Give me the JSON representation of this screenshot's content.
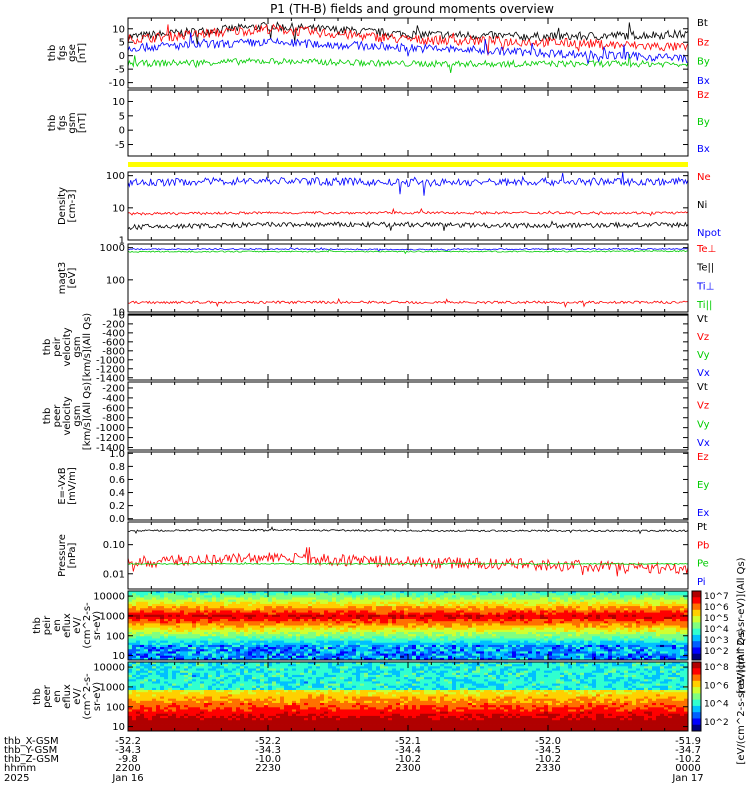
{
  "title": "P1 (TH-B) fields and ground moments overview",
  "panels": [
    {
      "id": "fgs",
      "ylabel": [
        "thb",
        "fgs",
        "gse",
        "[nT]"
      ],
      "ticks": [
        {
          "v": 10,
          "l": "10"
        },
        {
          "v": 5,
          "l": "5"
        },
        {
          "v": 0,
          "l": "0"
        },
        {
          "v": -5,
          "l": "-5"
        },
        {
          "v": -10,
          "l": "-10"
        }
      ],
      "ylim": [
        -12,
        14
      ],
      "scale": "linear",
      "legend": [
        {
          "label": "Bt",
          "color": "#000000"
        },
        {
          "label": "Bz",
          "color": "#ff0000"
        },
        {
          "label": "By",
          "color": "#00cc00"
        },
        {
          "label": "Bx",
          "color": "#0000ff"
        }
      ]
    },
    {
      "id": "fgs_gsm",
      "ylabel": [
        "thb",
        "fgs",
        "gsm",
        "[nT]"
      ],
      "ticks": [
        {
          "v": 10,
          "l": "10"
        },
        {
          "v": 5,
          "l": "5"
        },
        {
          "v": 0,
          "l": "0"
        },
        {
          "v": -5,
          "l": "-5"
        }
      ],
      "ylim": [
        -9,
        14
      ],
      "scale": "linear",
      "legend": [
        {
          "label": "Bz",
          "color": "#ff0000"
        },
        {
          "label": "By",
          "color": "#00cc00"
        },
        {
          "label": "Bx",
          "color": "#0000ff"
        }
      ]
    },
    {
      "id": "density",
      "ylabel": [
        "Density",
        "[cm-3]"
      ],
      "ticks": [
        {
          "v": 100,
          "l": "100"
        },
        {
          "v": 10,
          "l": "10"
        },
        {
          "v": 1,
          "l": "1"
        }
      ],
      "ylim": [
        1,
        130
      ],
      "scale": "log",
      "legend": [
        {
          "label": "Ne",
          "color": "#ff0000"
        },
        {
          "label": "Ni",
          "color": "#000000"
        },
        {
          "label": "Npot",
          "color": "#0000ff"
        }
      ]
    },
    {
      "id": "temp",
      "ylabel": [
        "magt3",
        "[eV]"
      ],
      "ticks": [
        {
          "v": 1000,
          "l": "1000"
        },
        {
          "v": 100,
          "l": "100"
        },
        {
          "v": 10,
          "l": "10"
        }
      ],
      "ylim": [
        10,
        1300
      ],
      "scale": "log",
      "legend": [
        {
          "label": "Te⊥",
          "color": "#ff0000"
        },
        {
          "label": "Te||",
          "color": "#000000"
        },
        {
          "label": "Ti⊥",
          "color": "#0000ff"
        },
        {
          "label": "Ti||",
          "color": "#00cc00"
        }
      ]
    },
    {
      "id": "peir_vel",
      "ylabel": [
        "thb",
        "peir",
        "velocity",
        "gsm",
        "[km/s](All Qs)"
      ],
      "ticks": [
        {
          "v": 0,
          "l": "0"
        },
        {
          "v": -200,
          "l": "-200"
        },
        {
          "v": -400,
          "l": "-400"
        },
        {
          "v": -600,
          "l": "-600"
        },
        {
          "v": -800,
          "l": "-800"
        },
        {
          "v": -1000,
          "l": "-1000"
        },
        {
          "v": -1200,
          "l": "-1200"
        },
        {
          "v": -1400,
          "l": "-1400"
        }
      ],
      "ylim": [
        -1450,
        20
      ],
      "scale": "linear",
      "legend": [
        {
          "label": "Vt",
          "color": "#000000"
        },
        {
          "label": "Vz",
          "color": "#ff0000"
        },
        {
          "label": "Vy",
          "color": "#00cc00"
        },
        {
          "label": "Vx",
          "color": "#0000ff"
        }
      ]
    },
    {
      "id": "peer_vel",
      "ylabel": [
        "thb",
        "peer",
        "velocity",
        "gsm",
        "[km/s](All Qs)"
      ],
      "ticks": [
        {
          "v": -200,
          "l": "-200"
        },
        {
          "v": -400,
          "l": "-400"
        },
        {
          "v": -600,
          "l": "-600"
        },
        {
          "v": -800,
          "l": "-800"
        },
        {
          "v": -1000,
          "l": "-1000"
        },
        {
          "v": -1200,
          "l": "-1200"
        },
        {
          "v": -1400,
          "l": "-1400"
        }
      ],
      "ylim": [
        -1450,
        -80
      ],
      "scale": "linear",
      "legend": [
        {
          "label": "Vt",
          "color": "#000000"
        },
        {
          "label": "Vz",
          "color": "#ff0000"
        },
        {
          "label": "Vy",
          "color": "#00cc00"
        },
        {
          "label": "Vx",
          "color": "#0000ff"
        }
      ]
    },
    {
      "id": "efield",
      "ylabel": [
        "E=-VxB",
        "[mV/m]"
      ],
      "ticks": [
        {
          "v": 1.0,
          "l": "1.0"
        },
        {
          "v": 0.8,
          "l": "0.8"
        },
        {
          "v": 0.6,
          "l": "0.6"
        },
        {
          "v": 0.4,
          "l": "0.4"
        },
        {
          "v": 0.2,
          "l": "0.2"
        },
        {
          "v": 0.0,
          "l": "0.0"
        }
      ],
      "ylim": [
        -0.02,
        1.02
      ],
      "scale": "linear",
      "legend": [
        {
          "label": "Ez",
          "color": "#ff0000"
        },
        {
          "label": "Ey",
          "color": "#00cc00"
        },
        {
          "label": "Ex",
          "color": "#0000ff"
        }
      ]
    },
    {
      "id": "pressure",
      "ylabel": [
        "Pressure",
        "[nPa]"
      ],
      "ticks": [
        {
          "v": 0.1,
          "l": "0.10"
        },
        {
          "v": 0.01,
          "l": "0.01"
        }
      ],
      "ylim": [
        0.003,
        0.6
      ],
      "scale": "log",
      "legend": [
        {
          "label": "Pt",
          "color": "#000000"
        },
        {
          "label": "Pb",
          "color": "#ff0000"
        },
        {
          "label": "Pe",
          "color": "#00cc00"
        },
        {
          "label": "Pi",
          "color": "#0000ff"
        }
      ]
    },
    {
      "id": "peir_en",
      "ylabel": [
        "thb",
        "peir",
        "en",
        "eflux",
        "eV/",
        "(cm^2-s-",
        "sr-eV)"
      ],
      "ticks": [
        {
          "v": 10000,
          "l": "10000"
        },
        {
          "v": 1000,
          "l": "1000"
        },
        {
          "v": 100,
          "l": "100"
        },
        {
          "v": 10,
          "l": "10"
        }
      ],
      "ylim": [
        6,
        18000
      ],
      "scale": "log",
      "spectrogram": true,
      "colorbar": {
        "label": "[eV/(cm^2-s-sr-eV)](All Qs)",
        "labels": [
          "10^7",
          "10^6",
          "10^5",
          "10^4",
          "10^3",
          "10^2"
        ]
      }
    },
    {
      "id": "peer_en",
      "ylabel": [
        "thb",
        "peer",
        "en",
        "eflux",
        "eV/",
        "(cm^2-s-",
        "sr-eV)"
      ],
      "ticks": [
        {
          "v": 10000,
          "l": "10000"
        },
        {
          "v": 1000,
          "l": "1000"
        },
        {
          "v": 100,
          "l": "100"
        },
        {
          "v": 10,
          "l": "10"
        }
      ],
      "ylim": [
        6,
        18000
      ],
      "scale": "log",
      "spectrogram": true,
      "colorbar": {
        "label": "[eV/(cm^2-s-sr-eV)](All Qs)",
        "labels": [
          "10^8",
          "10^6",
          "10^4",
          "10^2"
        ]
      }
    }
  ],
  "xaxis": {
    "row_labels": [
      "thb_X-GSM",
      "thb_Y-GSM",
      "thb_Z-GSM",
      "hhmm",
      "2025"
    ],
    "ticks": [
      {
        "rows": [
          "-52.2",
          "-34.3",
          "-9.8",
          "2200",
          "Jan 16"
        ]
      },
      {
        "rows": [
          "-52.2",
          "-34.3",
          "-10.0",
          "2230",
          ""
        ]
      },
      {
        "rows": [
          "-52.1",
          "-34.4",
          "-10.2",
          "2300",
          ""
        ]
      },
      {
        "rows": [
          "-52.0",
          "-34.5",
          "-10.2",
          "2330",
          ""
        ]
      },
      {
        "rows": [
          "-51.9",
          "-34.7",
          "-10.2",
          "0000",
          "Jan 17"
        ]
      }
    ]
  },
  "chart_data": {
    "type": "line",
    "title": "P1 (TH-B) fields and ground moments overview",
    "x": [
      "2200",
      "2230",
      "2300",
      "2330",
      "0000"
    ],
    "series": [
      {
        "name": "Bt",
        "panel": "fgs",
        "values": [
          7,
          11,
          8,
          7,
          8
        ]
      },
      {
        "name": "Bz",
        "panel": "fgs",
        "values": [
          6,
          10,
          6,
          5,
          3
        ]
      },
      {
        "name": "By",
        "panel": "fgs",
        "values": [
          -3,
          -2,
          -3,
          -3,
          -3
        ]
      },
      {
        "name": "Bx",
        "panel": "fgs",
        "values": [
          3,
          5,
          3,
          1,
          -1
        ]
      },
      {
        "name": "Ne",
        "panel": "density",
        "values": [
          6.5,
          7,
          7,
          7,
          7
        ]
      },
      {
        "name": "Npot",
        "panel": "density",
        "values": [
          60,
          70,
          60,
          65,
          65
        ]
      },
      {
        "name": "Ni",
        "panel": "density",
        "values": [
          2.5,
          3,
          3,
          2.8,
          3
        ]
      },
      {
        "name": "Ti⊥",
        "panel": "temp",
        "values": [
          900,
          900,
          880,
          900,
          920
        ]
      },
      {
        "name": "Ti||",
        "panel": "temp",
        "values": [
          750,
          760,
          760,
          760,
          780
        ]
      },
      {
        "name": "Te⊥",
        "panel": "temp",
        "values": [
          20,
          20,
          20,
          20,
          20
        ]
      },
      {
        "name": "Pt",
        "panel": "pressure",
        "values": [
          0.3,
          0.32,
          0.3,
          0.3,
          0.3
        ]
      },
      {
        "name": "Pb",
        "panel": "pressure",
        "values": [
          0.025,
          0.035,
          0.025,
          0.02,
          0.015
        ]
      },
      {
        "name": "Pe",
        "panel": "pressure",
        "values": [
          0.022,
          0.022,
          0.022,
          0.022,
          0.022
        ]
      }
    ]
  }
}
